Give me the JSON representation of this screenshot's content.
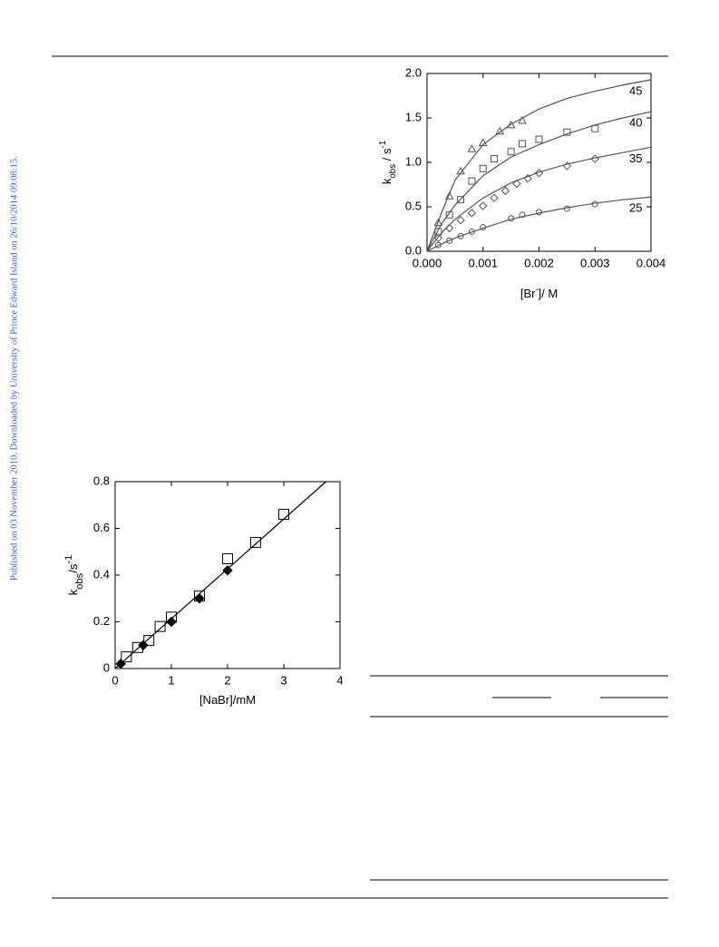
{
  "sidebar": "Published on 03 November 2010. Downloaded by University of Prince Edward Island on 26/10/2014 09:08:15.",
  "chart_data": [
    {
      "type": "scatter",
      "x_label": {
        "open": "[Br",
        "sup": "-",
        "close": "]/ M"
      },
      "y_label": {
        "base": "k",
        "sub": "obs",
        "mid": " / s",
        "sup": "-1"
      },
      "xlim": [
        0,
        0.004
      ],
      "xticks": [
        {
          "value": 0,
          "label": "0.000"
        },
        {
          "value": 0.001,
          "label": "0.001"
        },
        {
          "value": 0.002,
          "label": "0.002"
        },
        {
          "value": 0.003,
          "label": "0.003"
        },
        {
          "value": 0.004,
          "label": "0.004"
        }
      ],
      "ylim": [
        0,
        2
      ],
      "yticks": [
        {
          "value": 0,
          "label": "0.0"
        },
        {
          "value": 0.5,
          "label": "0.5"
        },
        {
          "value": 1,
          "label": "1.0"
        },
        {
          "value": 1.5,
          "label": "1.5"
        },
        {
          "value": 2,
          "label": "2.0"
        }
      ],
      "color": "#555555",
      "series": [
        {
          "name": "45",
          "marker": "triangle",
          "x": [
            0.0002,
            0.0004,
            0.0006,
            0.0008,
            0.001,
            0.0013,
            0.0015,
            0.0017
          ],
          "values": [
            0.32,
            0.62,
            0.9,
            1.15,
            1.22,
            1.35,
            1.42,
            1.47
          ],
          "fit": {
            "x": [
              0,
              0.00025,
              0.0005,
              0.001,
              0.0015,
              0.002,
              0.0025,
              0.003,
              0.0035,
              0.004
            ],
            "values": [
              0,
              0.42,
              0.8,
              1.2,
              1.43,
              1.6,
              1.72,
              1.8,
              1.87,
              1.93
            ]
          }
        },
        {
          "name": "40",
          "marker": "square",
          "x": [
            0.0002,
            0.0004,
            0.0006,
            0.0008,
            0.001,
            0.0012,
            0.0015,
            0.0017,
            0.002,
            0.0025,
            0.003
          ],
          "values": [
            0.22,
            0.41,
            0.58,
            0.79,
            0.93,
            1.04,
            1.12,
            1.21,
            1.26,
            1.34,
            1.38
          ],
          "fit": {
            "x": [
              0,
              0.00025,
              0.0005,
              0.001,
              0.0015,
              0.002,
              0.0025,
              0.003,
              0.0035,
              0.004
            ],
            "values": [
              0,
              0.3,
              0.52,
              0.85,
              1.06,
              1.2,
              1.32,
              1.42,
              1.5,
              1.57
            ]
          }
        },
        {
          "name": "35",
          "marker": "diamond",
          "x": [
            0.0002,
            0.0004,
            0.0006,
            0.0008,
            0.001,
            0.0012,
            0.0014,
            0.0016,
            0.0018,
            0.002,
            0.0025,
            0.003
          ],
          "values": [
            0.15,
            0.26,
            0.35,
            0.43,
            0.51,
            0.6,
            0.68,
            0.76,
            0.82,
            0.88,
            0.96,
            1.04
          ],
          "fit": {
            "x": [
              0,
              0.00025,
              0.0005,
              0.001,
              0.0015,
              0.002,
              0.0025,
              0.003,
              0.0035,
              0.004
            ],
            "values": [
              0,
              0.2,
              0.36,
              0.6,
              0.77,
              0.89,
              0.98,
              1.05,
              1.11,
              1.17
            ]
          }
        },
        {
          "name": "25",
          "marker": "circle",
          "x": [
            0.0002,
            0.0004,
            0.0006,
            0.0008,
            0.001,
            0.0015,
            0.0017,
            0.002,
            0.0025,
            0.003
          ],
          "values": [
            0.07,
            0.12,
            0.17,
            0.22,
            0.27,
            0.37,
            0.41,
            0.44,
            0.48,
            0.53
          ],
          "fit": {
            "x": [
              0,
              0.00025,
              0.0005,
              0.001,
              0.0015,
              0.002,
              0.0025,
              0.003,
              0.0035,
              0.004
            ],
            "values": [
              0,
              0.08,
              0.15,
              0.26,
              0.36,
              0.43,
              0.49,
              0.54,
              0.58,
              0.61
            ]
          }
        }
      ]
    },
    {
      "type": "scatter",
      "x_label": {
        "open": "[NaBr]/mM"
      },
      "y_label": {
        "base": "k",
        "sub": "obs",
        "mid": "/s",
        "sup": "-1"
      },
      "xlim": [
        0,
        4
      ],
      "xticks": [
        0,
        1,
        2,
        3,
        4
      ],
      "ylim": [
        0,
        0.8
      ],
      "yticks": [
        0,
        0.2,
        0.4,
        0.6,
        0.8
      ],
      "color": "#000000",
      "series": [
        {
          "marker": "square",
          "x": [
            0.2,
            0.4,
            0.6,
            0.8,
            1,
            1.5,
            2,
            2.5,
            3
          ],
          "values": [
            0.05,
            0.09,
            0.12,
            0.18,
            0.22,
            0.31,
            0.47,
            0.54,
            0.66
          ]
        },
        {
          "marker": "filled-diamond",
          "x": [
            0.1,
            0.5,
            1,
            1.5,
            2
          ],
          "values": [
            0.02,
            0.1,
            0.2,
            0.3,
            0.42
          ],
          "fit": {
            "x": [
              0,
              3.75
            ],
            "values": [
              0,
              0.8
            ]
          }
        }
      ]
    }
  ]
}
